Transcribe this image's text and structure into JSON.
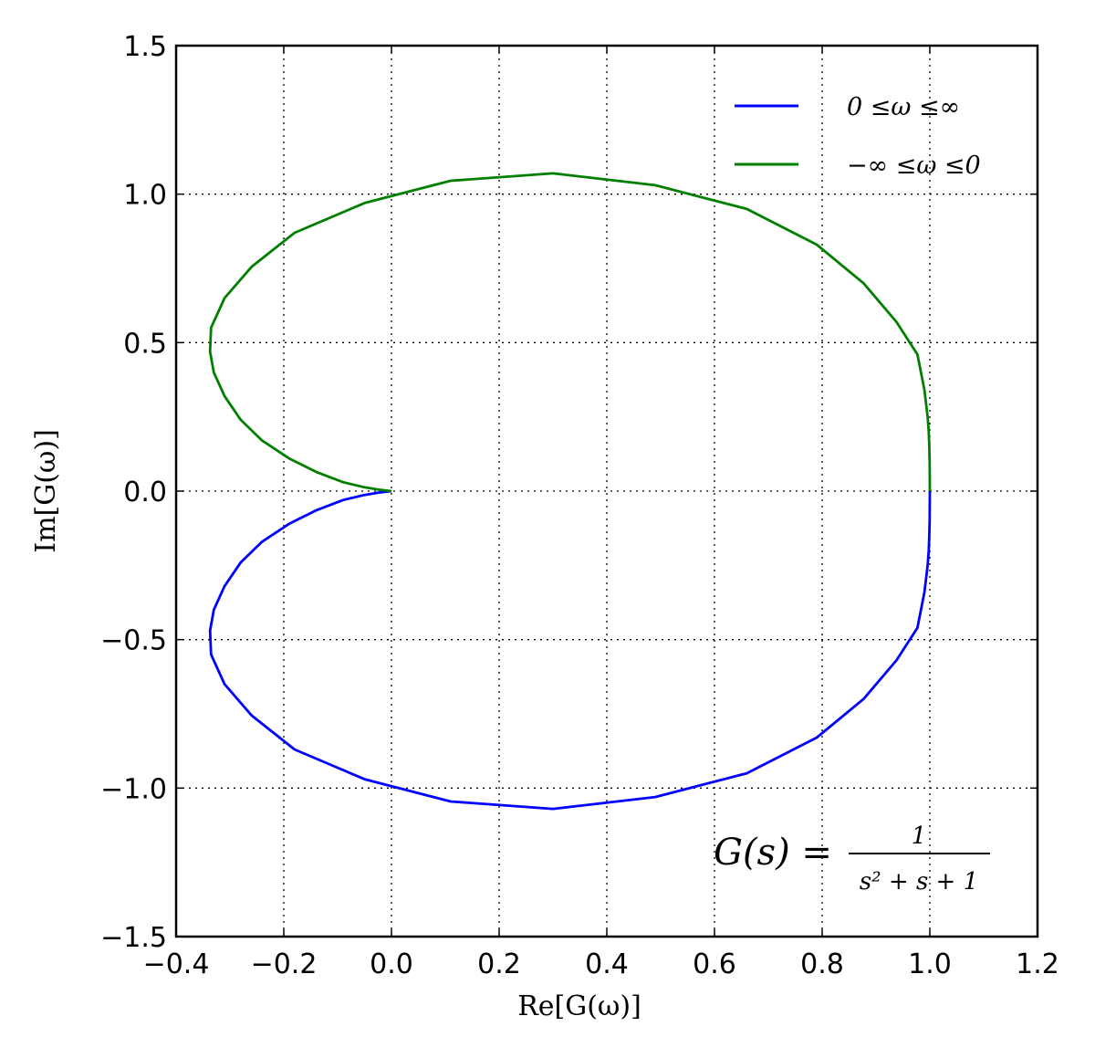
{
  "chart_data": {
    "type": "line",
    "title": "",
    "xlabel": "Re[G(ω)]",
    "ylabel": "Im[G(ω)]",
    "xlim": [
      -0.4,
      1.2
    ],
    "ylim": [
      -1.5,
      1.5
    ],
    "xticks": [
      -0.4,
      -0.2,
      0.0,
      0.2,
      0.4,
      0.6,
      0.8,
      1.0,
      1.2
    ],
    "yticks": [
      -1.5,
      -1.0,
      -0.5,
      0.0,
      0.5,
      1.0,
      1.5
    ],
    "xtick_labels": [
      "−0.4",
      "−0.2",
      "0.0",
      "0.2",
      "0.4",
      "0.6",
      "0.8",
      "1.0",
      "1.2"
    ],
    "ytick_labels": [
      "−1.5",
      "−1.0",
      "−0.5",
      "0.0",
      "0.5",
      "1.0",
      "1.5"
    ],
    "grid": true,
    "legend_position": "top-right",
    "series": [
      {
        "name": "0 ≤ω ≤∞",
        "color": "#0000ff",
        "x": [
          1.0,
          0.9999,
          0.9997,
          0.999,
          0.998,
          0.996,
          0.99,
          0.977,
          0.938,
          0.877,
          0.79,
          0.66,
          0.49,
          0.3,
          0.11,
          -0.05,
          -0.18,
          -0.26,
          -0.31,
          -0.335,
          -0.337,
          -0.33,
          -0.31,
          -0.28,
          -0.24,
          -0.19,
          -0.14,
          -0.09,
          -0.05,
          -0.02,
          0.0
        ],
        "y": [
          0.0,
          -0.05,
          -0.1,
          -0.15,
          -0.2,
          -0.25,
          -0.34,
          -0.46,
          -0.57,
          -0.7,
          -0.83,
          -0.95,
          -1.03,
          -1.07,
          -1.045,
          -0.97,
          -0.87,
          -0.755,
          -0.65,
          -0.55,
          -0.47,
          -0.4,
          -0.32,
          -0.24,
          -0.17,
          -0.11,
          -0.065,
          -0.03,
          -0.013,
          -0.004,
          0.0
        ]
      },
      {
        "name": "−∞ ≤ω ≤0",
        "color": "#007f00",
        "x": [
          1.0,
          0.9999,
          0.9997,
          0.999,
          0.998,
          0.996,
          0.99,
          0.977,
          0.938,
          0.877,
          0.79,
          0.66,
          0.49,
          0.3,
          0.11,
          -0.05,
          -0.18,
          -0.26,
          -0.31,
          -0.335,
          -0.337,
          -0.33,
          -0.31,
          -0.28,
          -0.24,
          -0.19,
          -0.14,
          -0.09,
          -0.05,
          -0.02,
          0.0
        ],
        "y": [
          0.0,
          0.05,
          0.1,
          0.15,
          0.2,
          0.25,
          0.34,
          0.46,
          0.57,
          0.7,
          0.83,
          0.95,
          1.03,
          1.07,
          1.045,
          0.97,
          0.87,
          0.755,
          0.65,
          0.55,
          0.47,
          0.4,
          0.32,
          0.24,
          0.17,
          0.11,
          0.065,
          0.03,
          0.013,
          0.004,
          0.0
        ]
      }
    ],
    "annotation": {
      "lhs": "G(s) =",
      "numerator": "1",
      "denominator": "s² + s + 1"
    }
  }
}
